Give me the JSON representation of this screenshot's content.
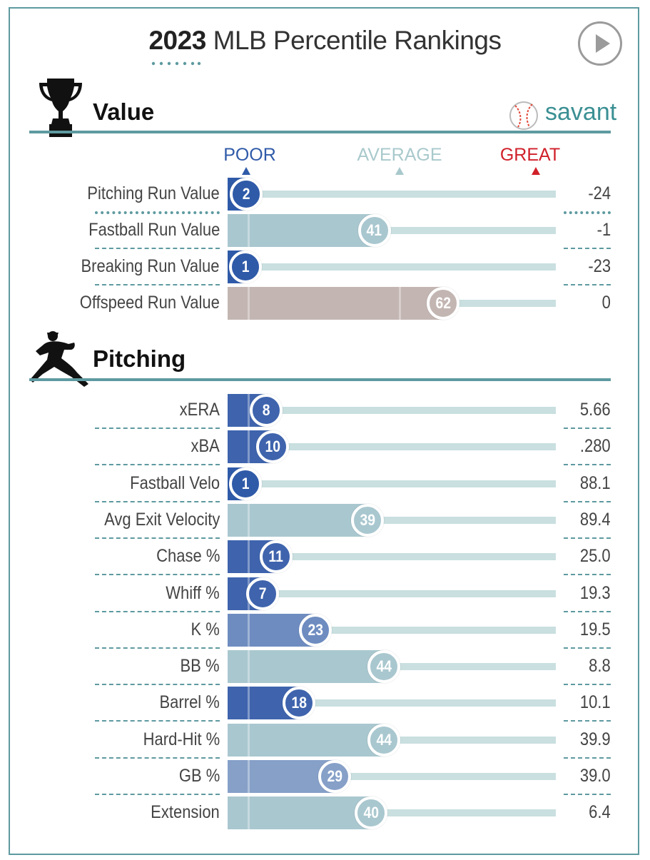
{
  "header": {
    "year": "2023",
    "title": "MLB Percentile Rankings",
    "play_icon": "play-icon"
  },
  "brand": {
    "name": "savant",
    "icon": "baseball-icon",
    "color": "#3a8f93"
  },
  "scale": {
    "poor": "POOR",
    "average": "AVERAGE",
    "great": "GREAT",
    "poor_color": "#2f5aa8",
    "average_color": "#a9c9cc",
    "great_color": "#d0202a"
  },
  "chart_data": {
    "type": "bar",
    "orientation": "horizontal",
    "xlim": [
      0,
      100
    ],
    "sections": [
      {
        "title": "Value",
        "icon": "trophy-icon",
        "metrics": [
          {
            "label": "Pitching Run Value",
            "percentile": 2,
            "value": "-24"
          },
          {
            "label": "Fastball Run Value",
            "percentile": 41,
            "value": "-1"
          },
          {
            "label": "Breaking Run Value",
            "percentile": 1,
            "value": "-23"
          },
          {
            "label": "Offspeed Run Value",
            "percentile": 62,
            "value": "0"
          }
        ]
      },
      {
        "title": "Pitching",
        "icon": "pitcher-icon",
        "metrics": [
          {
            "label": "xERA",
            "percentile": 8,
            "value": "5.66"
          },
          {
            "label": "xBA",
            "percentile": 10,
            "value": ".280"
          },
          {
            "label": "Fastball Velo",
            "percentile": 1,
            "value": "88.1"
          },
          {
            "label": "Avg Exit Velocity",
            "percentile": 39,
            "value": "89.4"
          },
          {
            "label": "Chase %",
            "percentile": 11,
            "value": "25.0"
          },
          {
            "label": "Whiff %",
            "percentile": 7,
            "value": "19.3"
          },
          {
            "label": "K %",
            "percentile": 23,
            "value": "19.5"
          },
          {
            "label": "BB %",
            "percentile": 44,
            "value": "8.8"
          },
          {
            "label": "Barrel %",
            "percentile": 18,
            "value": "10.1"
          },
          {
            "label": "Hard-Hit %",
            "percentile": 44,
            "value": "39.9"
          },
          {
            "label": "GB %",
            "percentile": 29,
            "value": "39.0"
          },
          {
            "label": "Extension",
            "percentile": 40,
            "value": "6.4"
          }
        ]
      }
    ]
  }
}
